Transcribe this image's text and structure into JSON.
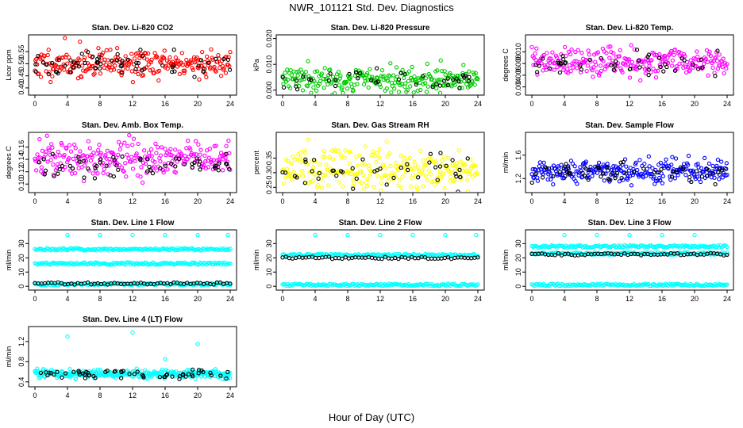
{
  "figure": {
    "title": "NWR_101121  Std. Dev. Diagnostics",
    "xlabel": "Hour of Day (UTC)"
  },
  "colors": {
    "red": "#ff0000",
    "green": "#00cc00",
    "magenta": "#ff00ff",
    "yellow": "#ffff00",
    "blue": "#0000ff",
    "cyan": "#00ffff",
    "black": "#000000"
  },
  "chart_data": [
    {
      "type": "scatter",
      "title": "Stan. Dev. Li-820 CO2",
      "ylabel": "Licor ppm",
      "xlim": [
        0,
        24
      ],
      "ylim": [
        0.38,
        0.61
      ],
      "yticks": [
        0.4,
        0.45,
        0.5,
        0.55
      ],
      "ytick_labels": [
        "0.40",
        "0.45",
        "0.50",
        "0.55"
      ],
      "xticks": [
        0,
        4,
        8,
        12,
        16,
        20,
        24
      ],
      "xtick_labels": [
        "0",
        "4",
        "8",
        "12",
        "16",
        "20",
        "24"
      ],
      "color": "red",
      "series": [
        {
          "name": "all",
          "mean": 0.5,
          "sd": 0.03,
          "n": 260,
          "seed": 11
        },
        {
          "name": "selected",
          "color": "black",
          "mean": 0.5,
          "sd": 0.03,
          "n": 60,
          "seed": 12
        }
      ]
    },
    {
      "type": "scatter",
      "title": "Stan. Dev. Li-820 Pressure",
      "ylabel": "kPa",
      "xlim": [
        0,
        24
      ],
      "ylim": [
        -0.001,
        0.0205
      ],
      "yticks": [
        0.0,
        0.01,
        0.02
      ],
      "ytick_labels": [
        "0.000",
        "0.010",
        "0.020"
      ],
      "xticks": [
        0,
        4,
        8,
        12,
        16,
        20,
        24
      ],
      "xtick_labels": [
        "0",
        "4",
        "8",
        "12",
        "16",
        "20",
        "24"
      ],
      "color": "green",
      "series": [
        {
          "name": "all",
          "mean": 0.004,
          "sd": 0.0025,
          "n": 260,
          "seed": 21
        },
        {
          "name": "selected",
          "color": "black",
          "mean": 0.004,
          "sd": 0.002,
          "n": 40,
          "seed": 22
        }
      ]
    },
    {
      "type": "scatter",
      "title": "Stan. Dev. Li-820 Temp.",
      "ylabel": "degrees C",
      "xlim": [
        0,
        24
      ],
      "ylim": [
        0.003,
        0.0125
      ],
      "yticks": [
        0.004,
        0.006,
        0.008,
        0.01
      ],
      "ytick_labels": [
        "0.004",
        "0.006",
        "0.008",
        "0.010"
      ],
      "xticks": [
        0,
        4,
        8,
        12,
        16,
        20,
        24
      ],
      "xtick_labels": [
        "0",
        "4",
        "8",
        "12",
        "16",
        "20",
        "24"
      ],
      "color": "magenta",
      "series": [
        {
          "name": "all",
          "mean": 0.0083,
          "sd": 0.0012,
          "n": 260,
          "seed": 31
        },
        {
          "name": "selected",
          "color": "black",
          "mean": 0.008,
          "sd": 0.0012,
          "n": 45,
          "seed": 32
        }
      ]
    },
    {
      "type": "scatter",
      "title": "Stan. Dev. Amb. Box Temp.",
      "ylabel": "degrees C",
      "xlim": [
        0,
        24
      ],
      "ylim": [
        0.09,
        0.18
      ],
      "yticks": [
        0.1,
        0.12,
        0.14,
        0.16
      ],
      "ytick_labels": [
        "0.10",
        "0.12",
        "0.14",
        "0.16"
      ],
      "xticks": [
        0,
        4,
        8,
        12,
        16,
        20,
        24
      ],
      "xtick_labels": [
        "0",
        "4",
        "8",
        "12",
        "16",
        "20",
        "24"
      ],
      "color": "magenta",
      "series": [
        {
          "name": "all",
          "mean": 0.14,
          "sd": 0.015,
          "n": 260,
          "seed": 41
        },
        {
          "name": "selected",
          "color": "black",
          "mean": 0.13,
          "sd": 0.01,
          "n": 60,
          "seed": 42
        }
      ]
    },
    {
      "type": "scatter",
      "title": "Stan. Dev. Gas Stream RH",
      "ylabel": "percent",
      "xlim": [
        0,
        24
      ],
      "ylim": [
        0.24,
        0.43
      ],
      "yticks": [
        0.25,
        0.3,
        0.35
      ],
      "ytick_labels": [
        "0.25",
        "0.30",
        "0.35"
      ],
      "xticks": [
        0,
        4,
        8,
        12,
        16,
        20,
        24
      ],
      "xtick_labels": [
        "0",
        "4",
        "8",
        "12",
        "16",
        "20",
        "24"
      ],
      "color": "yellow",
      "series": [
        {
          "name": "all",
          "mean": 0.31,
          "sd": 0.035,
          "n": 260,
          "seed": 51
        },
        {
          "name": "selected",
          "color": "black",
          "mean": 0.31,
          "sd": 0.035,
          "n": 45,
          "seed": 52
        }
      ]
    },
    {
      "type": "scatter",
      "title": "Stan. Dev. Sample Flow",
      "ylabel": "ml/min",
      "xlim": [
        0,
        24
      ],
      "ylim": [
        1.0,
        1.95
      ],
      "yticks": [
        1.2,
        1.6
      ],
      "ytick_labels": [
        "1.2",
        "1.6"
      ],
      "xticks": [
        0,
        4,
        8,
        12,
        16,
        20,
        24
      ],
      "xtick_labels": [
        "0",
        "4",
        "8",
        "12",
        "16",
        "20",
        "24"
      ],
      "color": "blue",
      "series": [
        {
          "name": "all",
          "mean": 1.33,
          "sd": 0.1,
          "n": 260,
          "seed": 61
        },
        {
          "name": "selected",
          "color": "black",
          "mean": 1.3,
          "sd": 0.08,
          "n": 55,
          "seed": 62
        }
      ]
    },
    {
      "type": "scatter",
      "title": "Stan. Dev. Line 1 Flow",
      "ylabel": "ml/min",
      "xlim": [
        0,
        24
      ],
      "ylim": [
        -1,
        38
      ],
      "yticks": [
        0,
        10,
        20,
        30
      ],
      "ytick_labels": [
        "0",
        "10",
        "20",
        "30"
      ],
      "xticks": [
        0,
        4,
        8,
        12,
        16,
        20,
        24
      ],
      "xtick_labels": [
        "0",
        "4",
        "8",
        "12",
        "16",
        "20",
        "24"
      ],
      "color": "cyan",
      "bands": [
        {
          "value": 26,
          "color": "cyan"
        },
        {
          "value": 16,
          "color": "cyan"
        },
        {
          "value": 1.5,
          "color": "cyan"
        },
        {
          "value": 2,
          "color": "black"
        }
      ],
      "outliers": [
        {
          "x": 4,
          "y": 36
        },
        {
          "x": 8,
          "y": 36
        },
        {
          "x": 12,
          "y": 36
        },
        {
          "x": 16,
          "y": 36
        },
        {
          "x": 20,
          "y": 36
        },
        {
          "x": 23.7,
          "y": 36
        }
      ]
    },
    {
      "type": "scatter",
      "title": "Stan. Dev. Line 2 Flow",
      "ylabel": "ml/min",
      "xlim": [
        0,
        24
      ],
      "ylim": [
        -1,
        38
      ],
      "yticks": [
        0,
        10,
        20,
        30
      ],
      "ytick_labels": [
        "0",
        "10",
        "20",
        "30"
      ],
      "xticks": [
        0,
        4,
        8,
        12,
        16,
        20,
        24
      ],
      "xtick_labels": [
        "0",
        "4",
        "8",
        "12",
        "16",
        "20",
        "24"
      ],
      "color": "cyan",
      "bands": [
        {
          "value": 22,
          "color": "cyan"
        },
        {
          "value": 1,
          "color": "cyan"
        },
        {
          "value": 20,
          "color": "black"
        }
      ],
      "outliers": [
        {
          "x": 4,
          "y": 36
        },
        {
          "x": 8,
          "y": 36
        },
        {
          "x": 12,
          "y": 36
        },
        {
          "x": 16,
          "y": 36
        },
        {
          "x": 20,
          "y": 36
        },
        {
          "x": 23.8,
          "y": 36
        }
      ]
    },
    {
      "type": "scatter",
      "title": "Stan. Dev. Line 3 Flow",
      "ylabel": "ml/min",
      "xlim": [
        0,
        24
      ],
      "ylim": [
        -1,
        38
      ],
      "yticks": [
        0,
        10,
        20,
        30
      ],
      "ytick_labels": [
        "0",
        "10",
        "20",
        "30"
      ],
      "xticks": [
        0,
        4,
        8,
        12,
        16,
        20,
        24
      ],
      "xtick_labels": [
        "0",
        "4",
        "8",
        "12",
        "16",
        "20",
        "24"
      ],
      "color": "cyan",
      "bands": [
        {
          "value": 28,
          "color": "cyan"
        },
        {
          "value": 23,
          "color": "cyan"
        },
        {
          "value": 1,
          "color": "cyan"
        },
        {
          "value": 22.5,
          "color": "black"
        }
      ],
      "outliers": [
        {
          "x": 4,
          "y": 36
        },
        {
          "x": 8,
          "y": 36
        },
        {
          "x": 12,
          "y": 36
        },
        {
          "x": 16,
          "y": 36
        },
        {
          "x": 20,
          "y": 36
        }
      ]
    },
    {
      "type": "scatter",
      "title": "Stan. Dev. Line 4 (LT) Flow",
      "ylabel": "ml/min",
      "xlim": [
        0,
        24
      ],
      "ylim": [
        0.35,
        1.45
      ],
      "yticks": [
        0.4,
        0.8,
        1.2
      ],
      "ytick_labels": [
        "0.4",
        "0.8",
        "1.2"
      ],
      "xticks": [
        0,
        4,
        8,
        12,
        16,
        20,
        24
      ],
      "xtick_labels": [
        "0",
        "4",
        "8",
        "12",
        "16",
        "20",
        "24"
      ],
      "color": "cyan",
      "series": [
        {
          "name": "all",
          "mean": 0.56,
          "sd": 0.04,
          "n": 320,
          "seed": 101
        },
        {
          "name": "selected",
          "color": "black",
          "mean": 0.55,
          "sd": 0.04,
          "n": 60,
          "seed": 102
        }
      ],
      "outliers": [
        {
          "x": 4,
          "y": 1.3
        },
        {
          "x": 12,
          "y": 1.38
        },
        {
          "x": 16,
          "y": 0.85
        },
        {
          "x": 20,
          "y": 1.15
        }
      ]
    }
  ]
}
